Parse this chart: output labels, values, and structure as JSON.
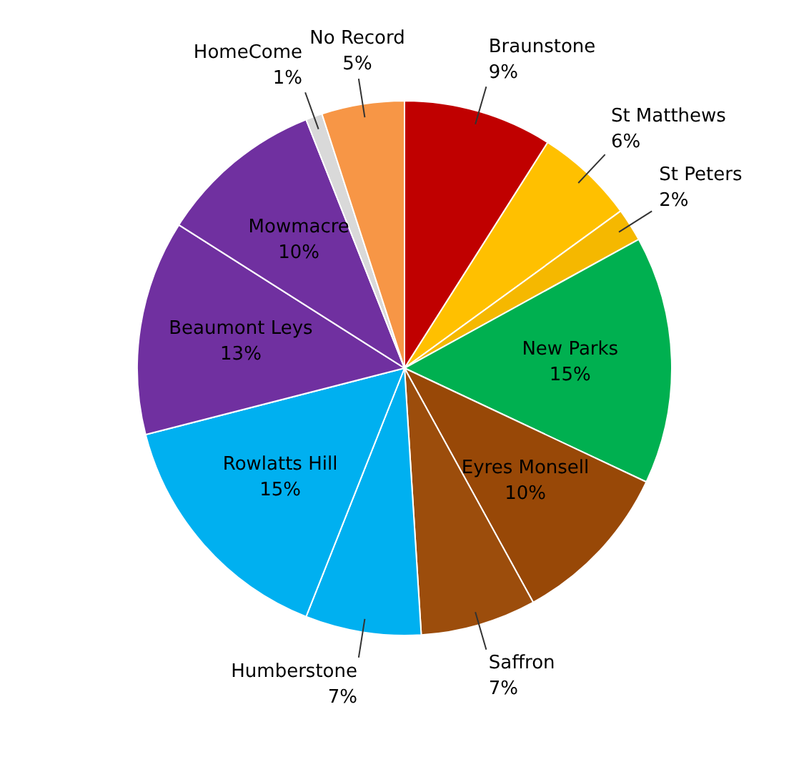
{
  "chart_data": {
    "type": "pie",
    "categories": [
      "Braunstone",
      "St Matthews",
      "St Peters",
      "New Parks",
      "Eyres Monsell",
      "Saffron",
      "Humberstone",
      "Rowlatts Hill",
      "Beaumont Leys",
      "Mowmacre",
      "HomeCome",
      "No Record"
    ],
    "values": [
      9,
      6,
      2,
      15,
      10,
      7,
      7,
      15,
      13,
      10,
      1,
      5
    ],
    "value_labels": [
      "9%",
      "6%",
      "2%",
      "15%",
      "10%",
      "7%",
      "7%",
      "15%",
      "13%",
      "10%",
      "1%",
      "5%"
    ],
    "colors": [
      "#c00000",
      "#ffc000",
      "#f5b800",
      "#00b050",
      "#984807",
      "#9c4d0c",
      "#00b0f0",
      "#00b0f0",
      "#7030a0",
      "#7030a0",
      "#d9d9d9",
      "#f79646"
    ],
    "legend": false
  }
}
